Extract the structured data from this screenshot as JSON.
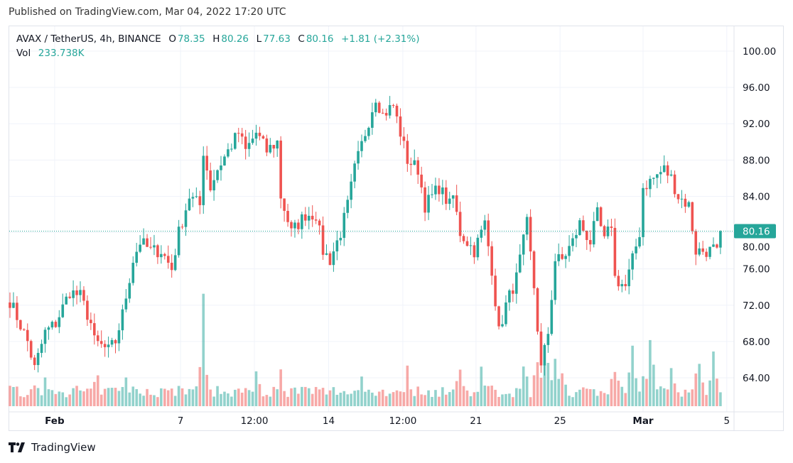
{
  "published": "Published on TradingView.com, Mar 04, 2022 17:20 UTC",
  "legend": {
    "symbol": "AVAX / TetherUS, 4h, BINANCE",
    "o_label": "O",
    "o": "78.35",
    "h_label": "H",
    "h": "80.26",
    "l_label": "L",
    "l": "77.63",
    "c_label": "C",
    "c": "80.16",
    "change": "+1.81 (+2.31%)",
    "vol_label": "Vol",
    "vol": "233.738K"
  },
  "last_price_label": "80.16",
  "footer": {
    "brand": "TradingView",
    "logo_icon": "tradingview-logo-icon"
  },
  "colors": {
    "up": "#26a69a",
    "down": "#ef5350",
    "grid": "#f0f3fa"
  },
  "chart_data": {
    "type": "candlestick",
    "interval_hours": 4,
    "y_ticks": [
      "64.00",
      "68.00",
      "72.00",
      "76.00",
      "80.00",
      "84.00",
      "88.00",
      "92.00",
      "96.00",
      "100.00"
    ],
    "ylim": [
      60.7,
      104.6
    ],
    "x_ticks": [
      {
        "label": "Feb",
        "candle": 12.7,
        "bold": true
      },
      {
        "label": "7",
        "candle": 48.5
      },
      {
        "label": "12:00",
        "candle": 69.5
      },
      {
        "label": "14",
        "candle": 90.6
      },
      {
        "label": "12:00",
        "candle": 111.7
      },
      {
        "label": "21",
        "candle": 132.5
      },
      {
        "label": "25",
        "candle": 156.4
      },
      {
        "label": "Mar",
        "candle": 180,
        "bold": true
      },
      {
        "label": "5",
        "candle": 203.8
      }
    ],
    "last": {
      "open": 78.35,
      "high": 80.26,
      "low": 77.63,
      "close": 80.16
    },
    "close_path": [
      [
        0,
        72.5
      ],
      [
        5,
        68
      ],
      [
        7,
        65
      ],
      [
        10,
        69
      ],
      [
        13,
        70
      ],
      [
        17,
        73.5
      ],
      [
        20,
        73
      ],
      [
        23,
        70
      ],
      [
        24,
        68
      ],
      [
        28,
        67
      ],
      [
        30,
        68
      ],
      [
        32,
        71
      ],
      [
        35,
        77
      ],
      [
        37,
        79
      ],
      [
        40,
        78
      ],
      [
        43,
        78
      ],
      [
        46,
        76
      ],
      [
        48,
        80
      ],
      [
        51,
        84
      ],
      [
        54,
        83
      ],
      [
        55,
        89
      ],
      [
        57,
        85
      ],
      [
        59,
        87
      ],
      [
        62,
        89
      ],
      [
        65,
        91
      ],
      [
        67,
        89
      ],
      [
        70,
        91
      ],
      [
        73,
        89
      ],
      [
        76,
        90
      ],
      [
        77,
        84
      ],
      [
        80,
        80
      ],
      [
        84,
        82
      ],
      [
        87,
        82
      ],
      [
        89,
        78
      ],
      [
        91,
        77
      ],
      [
        94,
        80
      ],
      [
        96,
        83
      ],
      [
        98,
        87
      ],
      [
        101,
        91
      ],
      [
        104,
        95
      ],
      [
        106,
        93
      ],
      [
        109,
        94
      ],
      [
        111,
        91
      ],
      [
        113,
        88
      ],
      [
        116,
        87
      ],
      [
        118,
        83
      ],
      [
        122,
        85
      ],
      [
        125,
        83
      ],
      [
        126,
        84
      ],
      [
        128,
        80
      ],
      [
        132,
        78
      ],
      [
        135,
        81
      ],
      [
        137,
        76
      ],
      [
        139,
        69
      ],
      [
        141,
        72
      ],
      [
        144,
        75
      ],
      [
        147,
        81
      ],
      [
        149,
        74
      ],
      [
        151,
        65
      ],
      [
        153,
        69
      ],
      [
        155,
        77
      ],
      [
        157,
        77
      ],
      [
        160,
        79
      ],
      [
        162,
        81
      ],
      [
        165,
        79
      ],
      [
        167,
        82
      ],
      [
        169,
        79
      ],
      [
        171,
        81
      ],
      [
        172,
        75
      ],
      [
        175,
        74
      ],
      [
        177,
        77
      ],
      [
        179,
        80
      ],
      [
        180,
        85
      ],
      [
        183,
        86
      ],
      [
        186,
        87
      ],
      [
        188,
        86
      ],
      [
        190,
        84
      ],
      [
        193,
        83
      ],
      [
        195,
        78
      ],
      [
        197,
        78
      ],
      [
        199,
        78
      ],
      [
        201,
        78.35
      ],
      [
        202,
        80.16
      ]
    ],
    "volume_peaks_k": [
      [
        0,
        300
      ],
      [
        10,
        350
      ],
      [
        25,
        380
      ],
      [
        33,
        420
      ],
      [
        48,
        320
      ],
      [
        55,
        1600
      ],
      [
        56,
        700
      ],
      [
        70,
        620
      ],
      [
        77,
        500
      ],
      [
        100,
        450
      ],
      [
        113,
        520
      ],
      [
        128,
        560
      ],
      [
        134,
        600
      ],
      [
        146,
        680
      ],
      [
        150,
        800
      ],
      [
        153,
        1000
      ],
      [
        155,
        820
      ],
      [
        157,
        750
      ],
      [
        172,
        700
      ],
      [
        177,
        760
      ],
      [
        181,
        760
      ],
      [
        182,
        1060
      ],
      [
        188,
        760
      ],
      [
        196,
        760
      ],
      [
        200,
        680
      ],
      [
        202,
        233.7
      ]
    ]
  }
}
